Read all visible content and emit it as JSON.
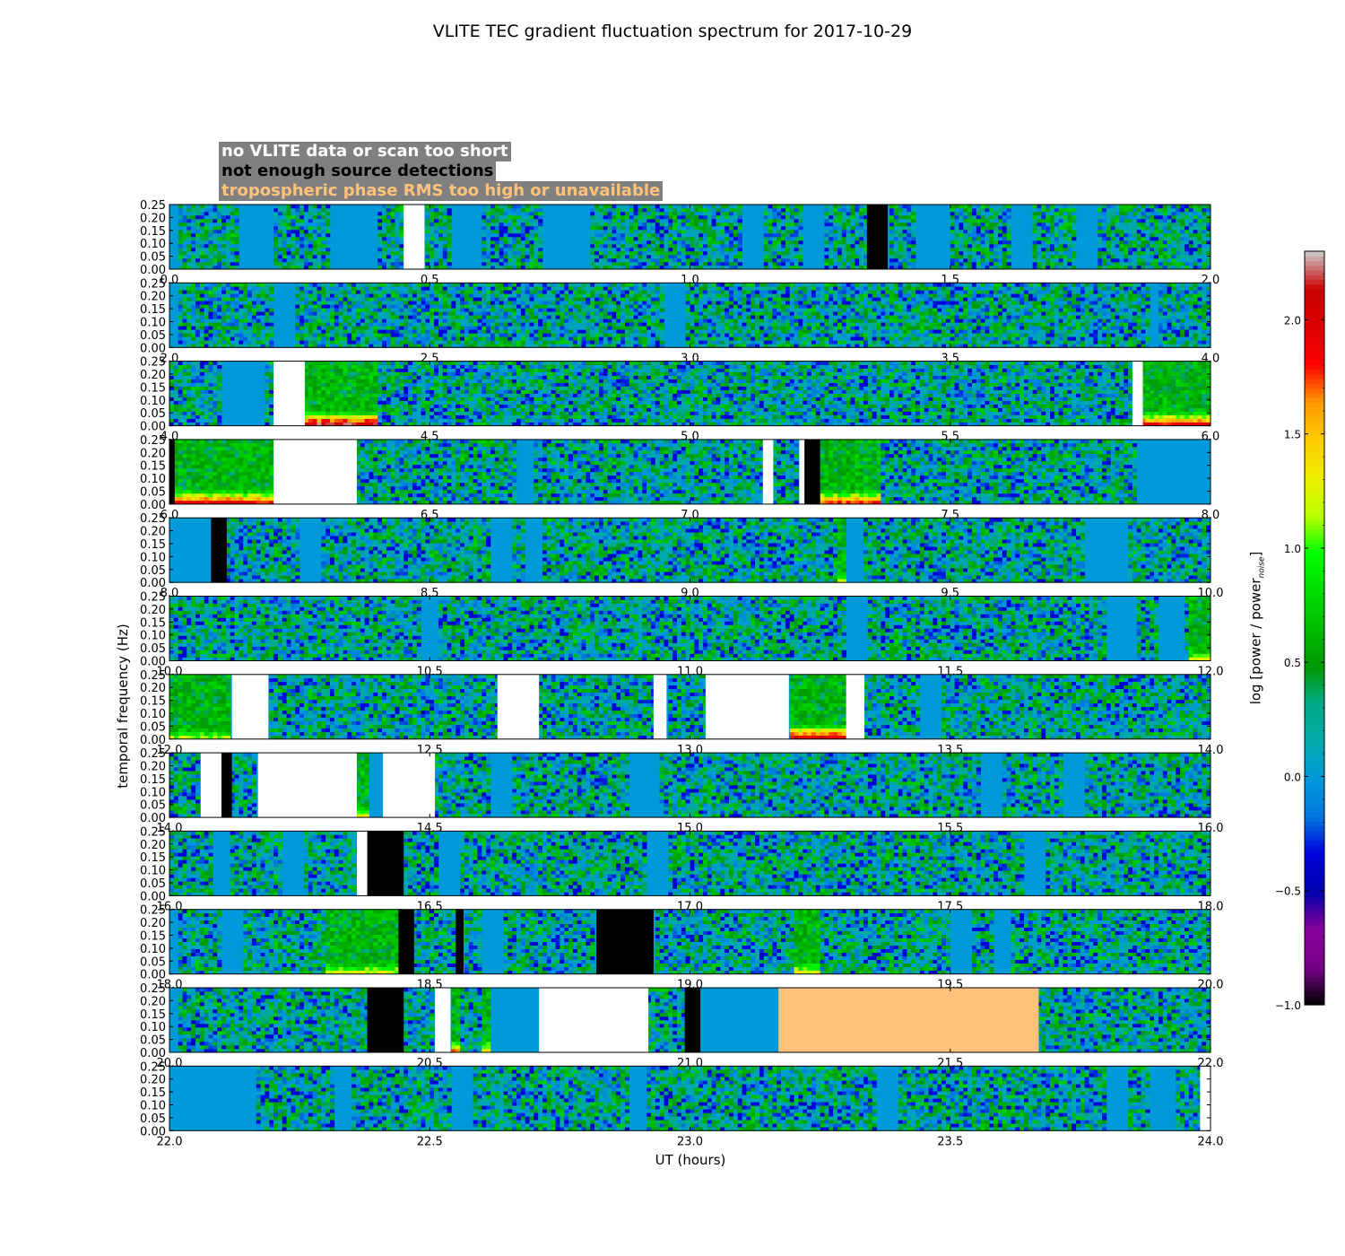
{
  "title": "VLITE TEC gradient fluctuation spectrum for 2017-10-29",
  "legend": [
    {
      "label": "no VLITE data or scan too short",
      "color": "#ffffff"
    },
    {
      "label": "not enough source detections",
      "color": "#000000"
    },
    {
      "label": "tropospheric phase RMS too high or unavailable",
      "color": "#ffc27a"
    }
  ],
  "colorbar": {
    "label": "log [power / power",
    "label_subscript": "noise",
    "label_close": "]",
    "min": -1.0,
    "max": 2.3,
    "ticks": [
      "2.0",
      "1.5",
      "1.0",
      "0.5",
      "0.0",
      "−0.5",
      "−1.0"
    ],
    "tick_values": [
      2.0,
      1.5,
      1.0,
      0.5,
      0.0,
      -0.5,
      -1.0
    ],
    "colormap": "nipy_spectral"
  },
  "chart_data": {
    "type": "heatmap",
    "title": "VLITE TEC gradient fluctuation spectrum for 2017-10-29",
    "xlabel": "UT (hours)",
    "ylabel": "temporal frequency (Hz)",
    "ylim": [
      0,
      0.25
    ],
    "yticks": [
      "0.00",
      "0.05",
      "0.10",
      "0.15",
      "0.20",
      "0.25"
    ],
    "noise_floor_value": 0.0,
    "panels": [
      {
        "xlim": [
          0,
          2
        ],
        "xticks": [
          "0.0",
          "0.5",
          "1.0",
          "1.5",
          "2.0"
        ],
        "flags": [
          {
            "start": 0.45,
            "end": 0.49,
            "flag": "no_data"
          },
          {
            "start": 1.34,
            "end": 1.38,
            "flag": "low_detections"
          }
        ],
        "quiet": [
          [
            0.0,
            0.02
          ],
          [
            0.13,
            0.2
          ],
          [
            0.31,
            0.4
          ],
          [
            0.54,
            0.6
          ],
          [
            0.72,
            0.81
          ],
          [
            1.1,
            1.14
          ],
          [
            1.22,
            1.26
          ],
          [
            1.43,
            1.5
          ],
          [
            1.62,
            1.66
          ],
          [
            1.74,
            1.78
          ]
        ],
        "active": []
      },
      {
        "xlim": [
          2,
          4
        ],
        "xticks": [
          "2.0",
          "2.5",
          "3.0",
          "3.5",
          "4.0"
        ],
        "flags": [],
        "quiet": [
          [
            2.0,
            2.02
          ],
          [
            2.2,
            2.24
          ],
          [
            2.95,
            2.99
          ],
          [
            3.88,
            3.9
          ]
        ],
        "active": []
      },
      {
        "xlim": [
          4,
          6
        ],
        "xticks": [
          "4.0",
          "4.5",
          "5.0",
          "5.5",
          "6.0"
        ],
        "flags": [
          {
            "start": 4.2,
            "end": 4.26,
            "flag": "no_data"
          },
          {
            "start": 5.85,
            "end": 5.87,
            "flag": "no_data"
          }
        ],
        "quiet": [
          [
            4.1,
            4.18
          ]
        ],
        "active": [
          {
            "start": 4.26,
            "end": 4.4,
            "level": 2.1
          },
          {
            "start": 5.87,
            "end": 6.0,
            "level": 1.9
          }
        ]
      },
      {
        "xlim": [
          6,
          8
        ],
        "xticks": [
          "6.0",
          "6.5",
          "7.0",
          "7.5",
          "8.0"
        ],
        "flags": [
          {
            "start": 6.0,
            "end": 6.01,
            "flag": "low_detections"
          },
          {
            "start": 6.2,
            "end": 6.36,
            "flag": "no_data"
          },
          {
            "start": 7.14,
            "end": 7.16,
            "flag": "no_data"
          },
          {
            "start": 7.21,
            "end": 7.22,
            "flag": "no_data"
          },
          {
            "start": 7.22,
            "end": 7.25,
            "flag": "low_detections"
          }
        ],
        "quiet": [
          [
            6.67,
            6.7
          ],
          [
            7.86,
            8.0
          ]
        ],
        "active": [
          {
            "start": 6.01,
            "end": 6.2,
            "level": 1.9
          },
          {
            "start": 7.25,
            "end": 7.37,
            "level": 1.8
          }
        ]
      },
      {
        "xlim": [
          8,
          10
        ],
        "xticks": [
          "8.0",
          "8.5",
          "9.0",
          "9.5",
          "10.0"
        ],
        "flags": [
          {
            "start": 8.08,
            "end": 8.11,
            "flag": "low_detections"
          }
        ],
        "quiet": [
          [
            8.0,
            8.08
          ],
          [
            8.25,
            8.29
          ],
          [
            8.62,
            8.66
          ],
          [
            8.68,
            8.72
          ],
          [
            9.3,
            9.33
          ],
          [
            9.76,
            9.84
          ]
        ],
        "active": [
          {
            "start": 9.28,
            "end": 9.3,
            "level": 1.1
          }
        ]
      },
      {
        "xlim": [
          10,
          12
        ],
        "xticks": [
          "10.0",
          "10.5",
          "11.0",
          "11.5",
          "12.0"
        ],
        "flags": [],
        "quiet": [
          [
            10.48,
            10.52
          ],
          [
            11.3,
            11.34
          ],
          [
            11.8,
            11.86
          ],
          [
            11.9,
            11.95
          ]
        ],
        "active": [
          {
            "start": 11.96,
            "end": 12.0,
            "level": 1.2
          }
        ]
      },
      {
        "xlim": [
          12,
          14
        ],
        "xticks": [
          "12.0",
          "12.5",
          "13.0",
          "13.5",
          "14.0"
        ],
        "flags": [
          {
            "start": 12.12,
            "end": 12.19,
            "flag": "no_data"
          },
          {
            "start": 12.63,
            "end": 12.71,
            "flag": "no_data"
          },
          {
            "start": 12.93,
            "end": 12.955,
            "flag": "no_data"
          },
          {
            "start": 13.03,
            "end": 13.19,
            "flag": "no_data"
          },
          {
            "start": 13.3,
            "end": 13.335,
            "flag": "no_data"
          }
        ],
        "quiet": [
          [
            13.44,
            13.48
          ]
        ],
        "active": [
          {
            "start": 13.19,
            "end": 13.3,
            "level": 2.0
          },
          {
            "start": 12.0,
            "end": 12.12,
            "level": 1.1
          }
        ]
      },
      {
        "xlim": [
          14,
          16
        ],
        "xticks": [
          "14.0",
          "14.5",
          "15.0",
          "15.5",
          "16.0"
        ],
        "flags": [
          {
            "start": 14.06,
            "end": 14.1,
            "flag": "no_data"
          },
          {
            "start": 14.1,
            "end": 14.12,
            "flag": "low_detections"
          },
          {
            "start": 14.17,
            "end": 14.36,
            "flag": "no_data"
          },
          {
            "start": 14.41,
            "end": 14.51,
            "flag": "no_data"
          }
        ],
        "quiet": [
          [
            14.38,
            14.41
          ],
          [
            14.62,
            14.66
          ],
          [
            14.88,
            14.94
          ],
          [
            15.56,
            15.6
          ],
          [
            15.72,
            15.76
          ]
        ],
        "active": [
          {
            "start": 14.36,
            "end": 14.38,
            "level": 1.3
          }
        ]
      },
      {
        "xlim": [
          16,
          18
        ],
        "xticks": [
          "16.0",
          "16.5",
          "17.0",
          "17.5",
          "18.0"
        ],
        "flags": [
          {
            "start": 16.36,
            "end": 16.38,
            "flag": "no_data"
          },
          {
            "start": 16.38,
            "end": 16.45,
            "flag": "low_detections"
          }
        ],
        "quiet": [
          [
            16.08,
            16.12
          ],
          [
            16.22,
            16.26
          ],
          [
            16.52,
            16.56
          ],
          [
            16.92,
            16.96
          ],
          [
            17.64,
            17.68
          ]
        ],
        "active": []
      },
      {
        "xlim": [
          18,
          20
        ],
        "xticks": [
          "18.0",
          "18.5",
          "19.0",
          "19.5",
          "20.0"
        ],
        "flags": [
          {
            "start": 18.44,
            "end": 18.47,
            "flag": "low_detections"
          },
          {
            "start": 18.55,
            "end": 18.565,
            "flag": "low_detections"
          },
          {
            "start": 18.82,
            "end": 18.93,
            "flag": "low_detections"
          }
        ],
        "quiet": [
          [
            18.0,
            18.02
          ],
          [
            18.1,
            18.14
          ],
          [
            18.6,
            18.64
          ],
          [
            19.5,
            19.54
          ],
          [
            19.58,
            19.62
          ]
        ],
        "active": [
          {
            "start": 18.3,
            "end": 18.44,
            "level": 1.2
          },
          {
            "start": 19.2,
            "end": 19.25,
            "level": 1.3
          }
        ]
      },
      {
        "xlim": [
          20,
          22
        ],
        "xticks": [
          "20.0",
          "20.5",
          "21.0",
          "21.5",
          "22.0"
        ],
        "flags": [
          {
            "start": 20.38,
            "end": 20.45,
            "flag": "low_detections"
          },
          {
            "start": 20.51,
            "end": 20.54,
            "flag": "no_data"
          },
          {
            "start": 20.71,
            "end": 20.92,
            "flag": "no_data"
          },
          {
            "start": 20.99,
            "end": 21.02,
            "flag": "low_detections"
          },
          {
            "start": 21.17,
            "end": 21.67,
            "flag": "tropo_rms"
          }
        ],
        "quiet": [
          [
            20.0,
            20.02
          ],
          [
            20.62,
            20.71
          ],
          [
            21.02,
            21.17
          ]
        ],
        "active": [
          {
            "start": 20.54,
            "end": 20.56,
            "level": 1.6
          },
          {
            "start": 20.6,
            "end": 20.67,
            "level": 1.5
          }
        ]
      },
      {
        "xlim": [
          22,
          24
        ],
        "xticks": [
          "22.0",
          "22.5",
          "23.0",
          "23.5",
          "24.0"
        ],
        "flags": [
          {
            "start": 23.98,
            "end": 24.0,
            "flag": "no_data"
          }
        ],
        "quiet": [
          [
            22.0,
            22.17
          ],
          [
            22.32,
            22.35
          ],
          [
            22.54,
            22.58
          ],
          [
            22.88,
            22.92
          ],
          [
            23.36,
            23.4
          ],
          [
            23.8,
            23.84
          ],
          [
            23.88,
            23.93
          ]
        ],
        "active": []
      }
    ]
  }
}
